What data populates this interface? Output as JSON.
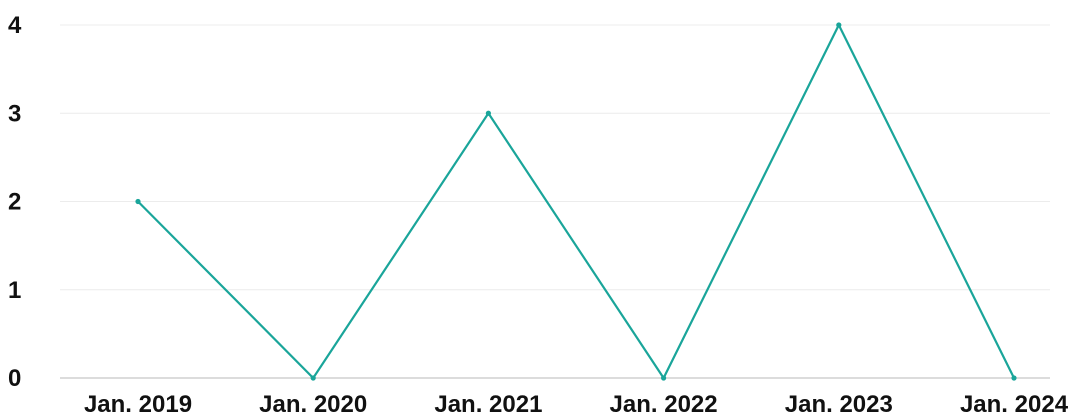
{
  "chart_data": {
    "type": "line",
    "title": "",
    "xlabel": "",
    "ylabel": "",
    "categories": [
      "Jan. 2019",
      "Jan. 2020",
      "Jan. 2021",
      "Jan. 2022",
      "Jan. 2023",
      "Jan. 2024"
    ],
    "series": [
      {
        "values": [
          2,
          0,
          3,
          0,
          4,
          0
        ]
      }
    ],
    "ylim": [
      0,
      4
    ],
    "yticks": [
      "0",
      "1",
      "2",
      "3",
      "4"
    ],
    "grid": true,
    "colors": {
      "line": "#1aa59a",
      "grid": "#ececec",
      "text": "#111111"
    }
  }
}
